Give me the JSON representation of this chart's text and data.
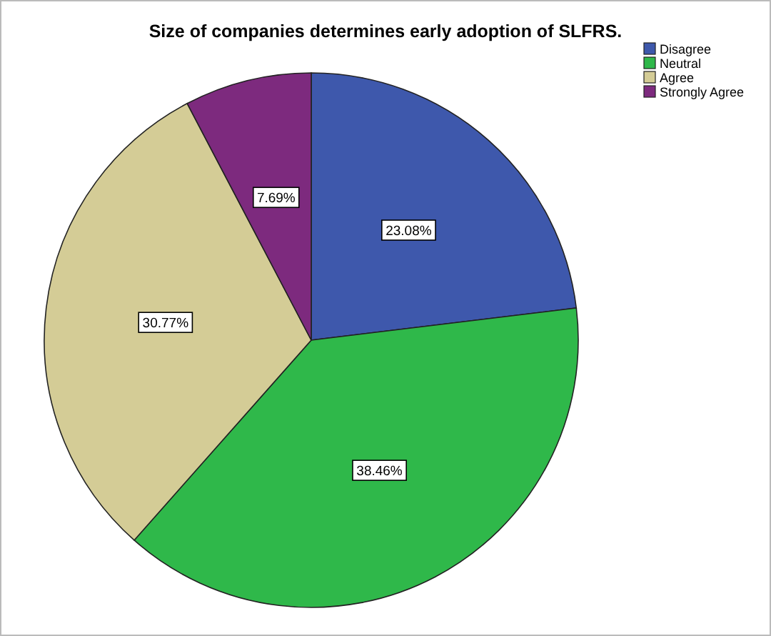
{
  "chart_data": {
    "type": "pie",
    "title": "Size of companies determines early adoption of SLFRS.",
    "categories": [
      "Disagree",
      "Neutral",
      "Agree",
      "Strongly Agree"
    ],
    "values": [
      23.08,
      38.46,
      30.77,
      7.69
    ],
    "colors": [
      "#3e58ac",
      "#2fb84a",
      "#d4cc96",
      "#7d2a7e"
    ],
    "value_labels": [
      "23.08%",
      "38.46%",
      "30.77%",
      "7.69%"
    ],
    "legend": "top right"
  }
}
